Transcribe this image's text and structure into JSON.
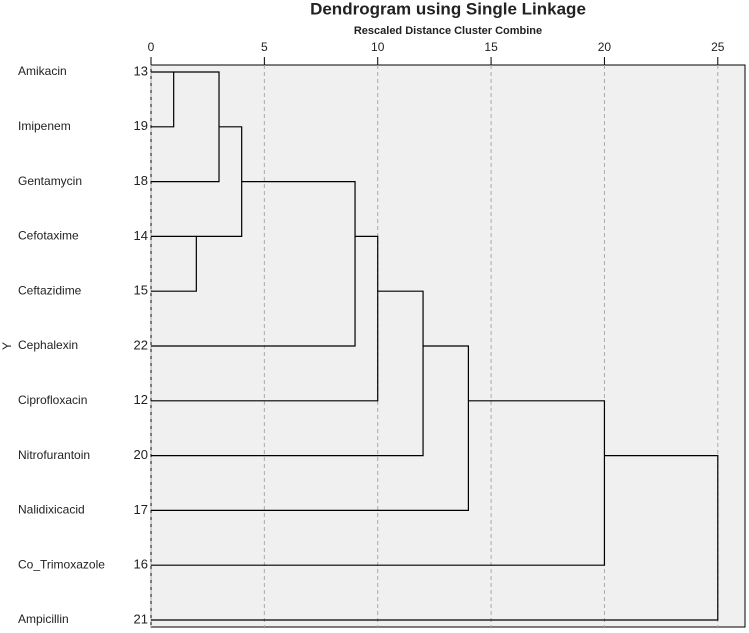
{
  "chart_data": {
    "type": "dendrogram",
    "title": "Dendrogram using Single Linkage",
    "subtitle": "Rescaled Distance Cluster Combine",
    "ylabel": "Y",
    "leaves": [
      {
        "label": "Amikacin",
        "id": 13
      },
      {
        "label": "Imipenem",
        "id": 19
      },
      {
        "label": "Gentamycin",
        "id": 18
      },
      {
        "label": "Cefotaxime",
        "id": 14
      },
      {
        "label": "Ceftazidime",
        "id": 15
      },
      {
        "label": "Cephalexin",
        "id": 22
      },
      {
        "label": "Ciprofloxacin",
        "id": 12
      },
      {
        "label": "Nitrofurantoin",
        "id": 20
      },
      {
        "label": "Nalidixicacid",
        "id": 17
      },
      {
        "label": "Co_Trimoxazole",
        "id": 16
      },
      {
        "label": "Ampicillin",
        "id": 21
      }
    ],
    "merges": [
      {
        "a": 0,
        "b": 1,
        "height": 1
      },
      {
        "a": 3,
        "b": 4,
        "height": 2
      },
      {
        "a": 11,
        "b": 2,
        "height": 3
      },
      {
        "a": 13,
        "b": 12,
        "height": 4
      },
      {
        "a": 14,
        "b": 5,
        "height": 9
      },
      {
        "a": 15,
        "b": 6,
        "height": 10
      },
      {
        "a": 16,
        "b": 7,
        "height": 12
      },
      {
        "a": 17,
        "b": 8,
        "height": 14
      },
      {
        "a": 18,
        "b": 9,
        "height": 20
      },
      {
        "a": 19,
        "b": 10,
        "height": 25
      }
    ],
    "xlim": [
      0,
      26.2
    ],
    "xticks": [
      0,
      5,
      10,
      15,
      20,
      25
    ],
    "grid": true,
    "background": "#f0f0f0",
    "color": "#000000"
  }
}
